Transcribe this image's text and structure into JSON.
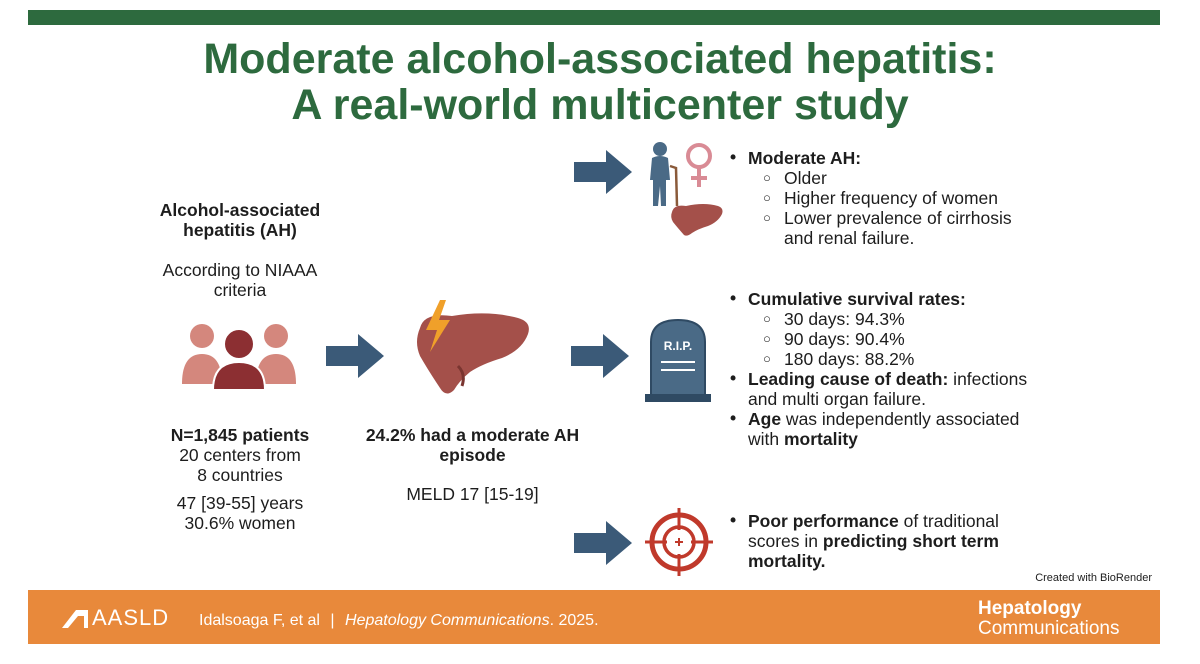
{
  "title": {
    "line1": "Moderate alcohol-associated hepatitis:",
    "line2": "A real-world multicenter study"
  },
  "left": {
    "heading_line1": "Alcohol-associated",
    "heading_line2": "hepatitis (AH)",
    "criteria_line1": "According to NIAAA",
    "criteria_line2": "criteria",
    "patients_bold": "N=1,845 patients",
    "centers_line1": "20 centers from",
    "centers_line2": "8 countries",
    "age": "47 [39-55] years",
    "women": "30.6% women"
  },
  "middle": {
    "moderate_line1": "24.2% had a moderate AH",
    "moderate_line2": "episode",
    "meld": "MELD 17 [15-19]"
  },
  "panel1": {
    "heading": "Moderate AH:",
    "items": [
      "Older",
      "Higher frequency of women",
      "Lower prevalence of cirrhosis"
    ],
    "item3_cont": "and  renal failure."
  },
  "panel2": {
    "heading": "Cumulative survival rates:",
    "rates": [
      "30 days: 94.3%",
      "90 days: 90.4%",
      "180 days: 88.2%"
    ],
    "cause_bold": "Leading cause of death:",
    "cause_rest": " infections",
    "cause_line2": "and multi organ failure.",
    "age_bold": "Age",
    "age_rest": " was independently associated",
    "age_line2_pre": "with ",
    "age_line2_bold": "mortality",
    "rip_text": "R.I.P."
  },
  "panel3": {
    "line1_bold": "Poor performance",
    "line1_rest": " of traditional",
    "line2_pre": "scores in ",
    "line2_bold": "predicting short term",
    "line3_bold": "mortality."
  },
  "credit": "Created with BioRender",
  "footer": {
    "logo_text": "AASLD",
    "citation_authors": "Idalsoaga F, et al",
    "separator": "|",
    "journal": "Hepatology Communications",
    "year": ". 2025.",
    "brand_line1": "Hepatology",
    "brand_line2": "Communications"
  },
  "colors": {
    "green": "#2d6a3e",
    "orange": "#e8893b",
    "arrow": "#3b5a78",
    "person_light": "#d4877d",
    "person_dark": "#8c2f32",
    "liver": "#a4504a",
    "female_symbol": "#d98b95",
    "target": "#c0392b"
  },
  "icons": [
    "patients-group-icon",
    "liver-lightning-icon",
    "elderly-person-icon",
    "female-symbol-icon",
    "small-liver-icon",
    "tombstone-icon",
    "target-crosshair-icon"
  ]
}
